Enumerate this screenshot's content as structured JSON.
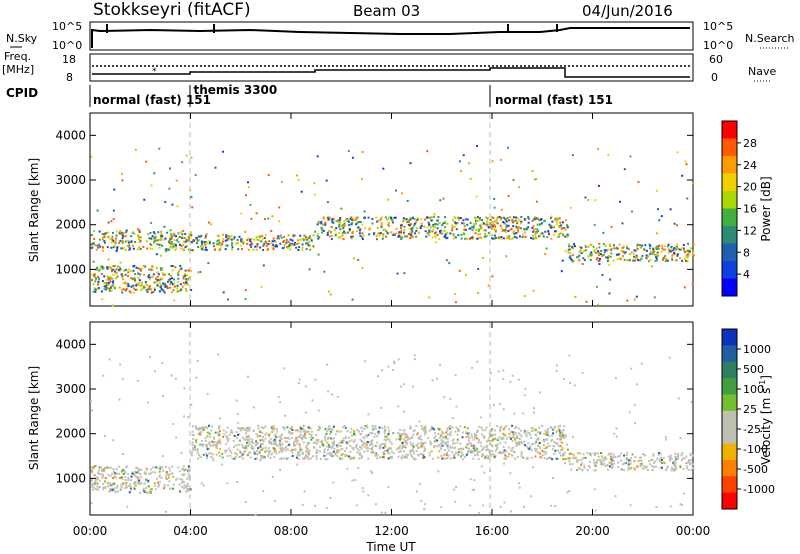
{
  "header": {
    "station": "Stokkseyri (fitACF)",
    "beam": "Beam 03",
    "date": "04/Jun/2016"
  },
  "top_panels": {
    "nsky_label": "N.Sky",
    "nsky_ticks": [
      "10^5",
      "10^0"
    ],
    "nsearch_label": "N.Search",
    "nsearch_ticks": [
      "10^5",
      "10^0"
    ],
    "freq_label": "Freq.",
    "freq_unit": "[MHz]",
    "freq_ticks": [
      "18",
      "8"
    ],
    "nave_label": "Nave",
    "nave_ticks": [
      "60",
      "0"
    ],
    "cpid_label": "CPID",
    "cpid_segments": [
      {
        "name": "normal (fast)",
        "id": "151",
        "start_h": 0.0,
        "end_h": 4.0
      },
      {
        "name": "themis",
        "id": "3300",
        "start_h": 4.0,
        "end_h": 16.0
      },
      {
        "name": "normal (fast)",
        "id": "151",
        "start_h": 16.0,
        "end_h": 24.0
      }
    ]
  },
  "colorbars": {
    "power": {
      "label": "Power [dB]",
      "ticks": [
        "28",
        "24",
        "20",
        "16",
        "12",
        "8",
        "4"
      ],
      "colors": [
        "#ff0000",
        "#ff5a00",
        "#ff9a00",
        "#f0d000",
        "#a8d800",
        "#40b040",
        "#2e8b74",
        "#2060b0",
        "#1040e0",
        "#0000ff"
      ]
    },
    "velocity": {
      "label": "Velocity [m s",
      "label_sup": "-1",
      "label_end": "]",
      "ticks": [
        "1000",
        "500",
        "100",
        "25",
        "-25",
        "-100",
        "-500",
        "-1000"
      ],
      "colors": [
        "#1030c0",
        "#2060a0",
        "#2e8060",
        "#40a040",
        "#70c030",
        "#c0c0b0",
        "#c0c0b0",
        "#f0b000",
        "#ff8000",
        "#ff4000",
        "#ff0000"
      ]
    }
  },
  "chart_data": {
    "type": "heatmap",
    "xlabel": "Time UT",
    "x_ticks": [
      "00:00",
      "04:00",
      "08:00",
      "12:00",
      "16:00",
      "20:00",
      "00:00"
    ],
    "xlim_hours": [
      0,
      24
    ],
    "ylabel": "Slant Range [km]",
    "y_ticks": [
      1000,
      2000,
      3000,
      4000
    ],
    "ylim_km": [
      180,
      4500
    ],
    "mode_change_hours": [
      4.0,
      16.0
    ],
    "panels": [
      {
        "name": "power",
        "colorbar": "Power [dB]",
        "scatter_bands": [
          {
            "t0": 0,
            "t1": 4,
            "r0": 1450,
            "r1": 1900,
            "level": "12-24 dB"
          },
          {
            "t0": 4,
            "t1": 9,
            "r0": 1450,
            "r1": 1800,
            "level": "16-28 dB"
          },
          {
            "t0": 9,
            "t1": 19,
            "r0": 1700,
            "r1": 2200,
            "level": "8-20 dB"
          },
          {
            "t0": 0,
            "t1": 4,
            "r0": 500,
            "r1": 1100,
            "level": "8-20 dB"
          },
          {
            "t0": 19,
            "t1": 24,
            "r0": 1200,
            "r1": 1600,
            "level": "4-12 dB"
          }
        ]
      },
      {
        "name": "velocity",
        "colorbar": "Velocity [m s-1]",
        "scatter_bands": [
          {
            "t0": 0,
            "t1": 4,
            "r0": 700,
            "r1": 1300,
            "level": "-25 to 500 m/s"
          },
          {
            "t0": 4,
            "t1": 19,
            "r0": 1450,
            "r1": 2200,
            "level": "-25 to 25 m/s"
          },
          {
            "t0": 19,
            "t1": 24,
            "r0": 1200,
            "r1": 1600,
            "level": "-25 to 25 m/s"
          }
        ]
      }
    ]
  }
}
